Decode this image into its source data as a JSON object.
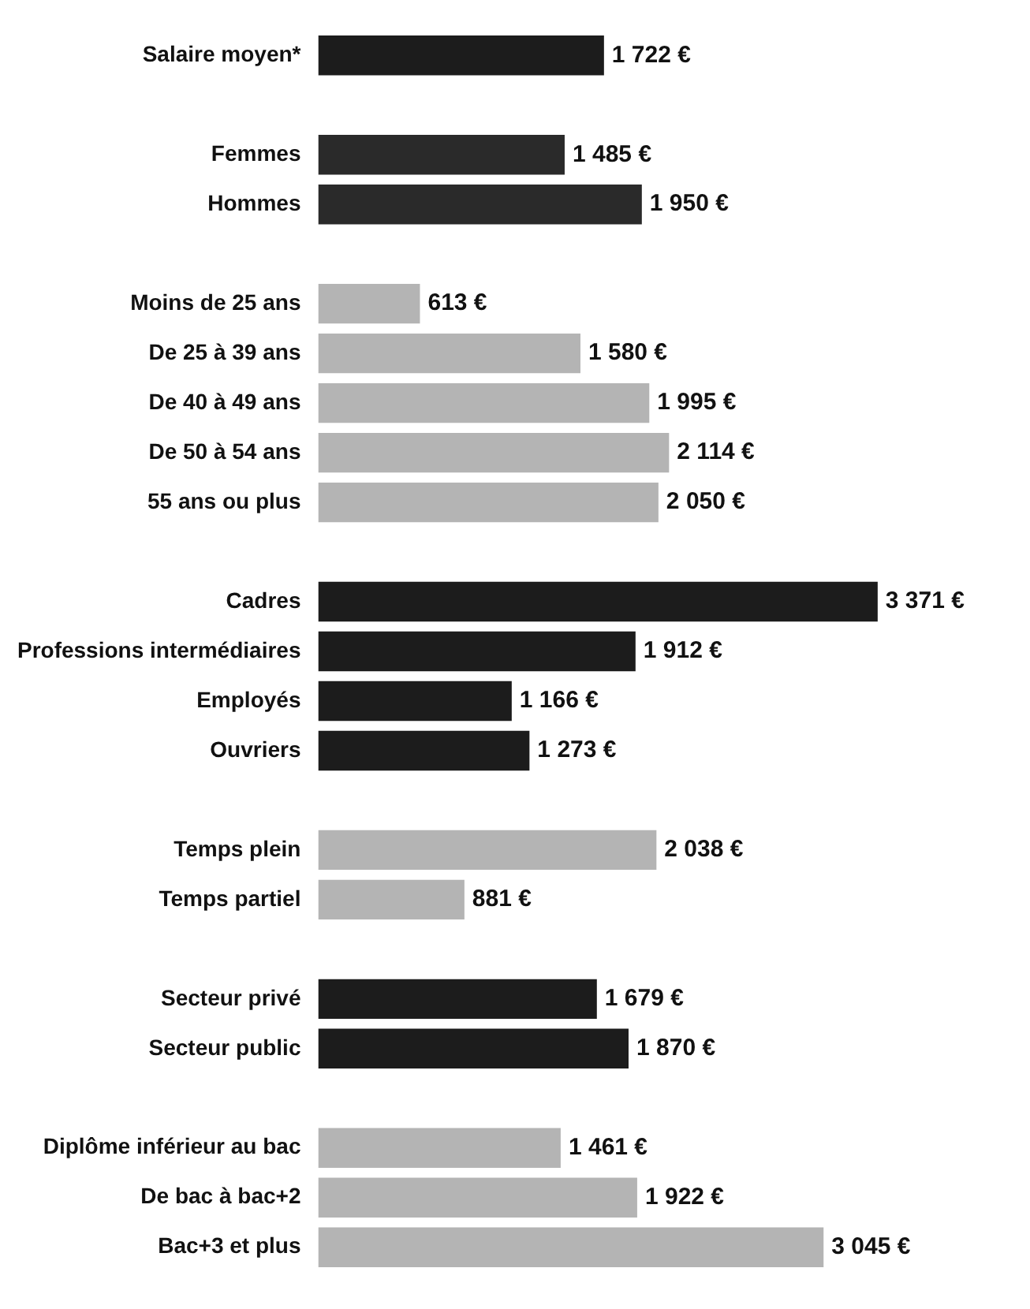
{
  "chart_data": {
    "type": "bar",
    "orientation": "horizontal",
    "categories": [
      "Salaire moyen*",
      null,
      "Femmes",
      "Hommes",
      null,
      "Moins de 25 ans",
      "De 25 à 39 ans",
      "De 40 à 49 ans",
      "De 50 à 54 ans",
      "55 ans ou plus",
      null,
      "Cadres",
      "Professions intermédiaires",
      "Employés",
      "Ouvriers",
      null,
      "Temps plein",
      "Temps partiel",
      null,
      "Secteur privé",
      "Secteur public",
      null,
      "Diplôme inférieur au bac",
      "De bac à bac+2",
      "Bac+3 et plus"
    ],
    "values": [
      1722,
      null,
      1485,
      1950,
      null,
      613,
      1580,
      1995,
      2114,
      2050,
      null,
      3371,
      1912,
      1166,
      1273,
      null,
      2038,
      881,
      null,
      1679,
      1870,
      null,
      1461,
      1922,
      3045
    ],
    "colors": [
      "#1c1c1c",
      null,
      "#2a2a2a",
      "#2a2a2a",
      null,
      "#b4b4b4",
      "#b4b4b4",
      "#b4b4b4",
      "#b4b4b4",
      "#b4b4b4",
      null,
      "#1c1c1c",
      "#1c1c1c",
      "#1c1c1c",
      "#1c1c1c",
      null,
      "#b4b4b4",
      "#b4b4b4",
      null,
      "#1c1c1c",
      "#1c1c1c",
      null,
      "#b4b4b4",
      "#b4b4b4",
      "#b4b4b4"
    ],
    "value_labels": [
      "1 722 €",
      null,
      "1 485 €",
      "1 950 €",
      null,
      "613 €",
      "1 580 €",
      "1 995 €",
      "2 114 €",
      "2 050 €",
      null,
      "3 371 €",
      "1 912 €",
      "1 166 €",
      "1 273 €",
      null,
      "2 038 €",
      "881 €",
      null,
      "1 679 €",
      "1 870 €",
      null,
      "1 461 €",
      "1 922 €",
      "3 045 €"
    ],
    "legend": false
  }
}
